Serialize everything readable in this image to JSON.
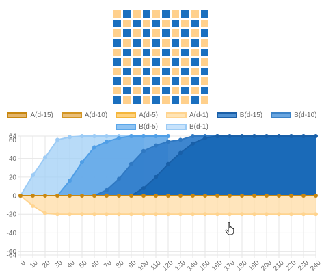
{
  "board": {
    "rows": 10,
    "cols": 10,
    "colors": {
      "light": "#ffd08c",
      "dark": "#1a6fbf",
      "pale": "#ffe7bf"
    },
    "pattern": [
      [
        "light",
        "dark",
        "light",
        "dark",
        "light",
        "dark",
        "light",
        "dark",
        "light",
        "dark"
      ],
      [
        "dark",
        "light",
        "dark",
        "light",
        "dark",
        "light",
        "dark",
        "light",
        "dark",
        "light"
      ],
      [
        "light",
        "dark",
        "light",
        "dark",
        "light",
        "dark",
        "light",
        "dark",
        "light",
        "dark"
      ],
      [
        "dark",
        "light",
        "dark",
        "light",
        "dark",
        "light",
        "dark",
        "light",
        "dark",
        "light"
      ],
      [
        "light",
        "dark",
        "light",
        "dark",
        "light",
        "dark",
        "light",
        "dark",
        "light",
        "dark"
      ],
      [
        "dark",
        "light",
        "dark",
        "light",
        "dark",
        "light",
        "dark",
        "light",
        "dark",
        "light"
      ],
      [
        "light",
        "dark",
        "light",
        "dark",
        "light",
        "dark",
        "light",
        "dark",
        "light",
        "dark"
      ],
      [
        "dark",
        "light",
        "dark",
        "light",
        "dark",
        "light",
        "dark",
        "light",
        "dark",
        "light"
      ],
      [
        "light",
        "dark",
        "light",
        "dark",
        "light",
        "dark",
        "light",
        "dark",
        "light",
        "dark"
      ],
      [
        "dark",
        "light",
        "dark",
        "light",
        "dark",
        "light",
        "dark",
        "light",
        "dark",
        "light"
      ]
    ]
  },
  "legend": {
    "row1": [
      {
        "label": "A(d-15)",
        "fill": "#e3b46a",
        "border": "#c8870f"
      },
      {
        "label": "A(d-10)",
        "fill": "#e9be79",
        "border": "#d39522"
      },
      {
        "label": "A(d-5)",
        "fill": "#ffd27f",
        "border": "#f4b63c"
      },
      {
        "label": "A(d-1)",
        "fill": "#ffe4b5",
        "border": "#ffd48f"
      },
      {
        "label": "B(d-15)",
        "fill": "#4d8fd1",
        "border": "#1a5fa8"
      },
      {
        "label": "B(d-10)",
        "fill": "#6aa6e0",
        "border": "#3b82c7"
      }
    ],
    "row2": [
      {
        "label": "B(d-5)",
        "fill": "#8fc3f2",
        "border": "#5aa7ea"
      },
      {
        "label": "B(d-1)",
        "fill": "#c7e2fb",
        "border": "#9ccbf5"
      }
    ]
  },
  "chart_data": {
    "type": "area",
    "y_range": [
      -64,
      64
    ],
    "y_ticks": [
      -64,
      -60,
      -40,
      -20,
      0,
      20,
      40,
      60,
      64
    ],
    "x_range": [
      0,
      240
    ],
    "x_ticks": [
      0,
      10,
      20,
      30,
      40,
      50,
      60,
      70,
      80,
      90,
      100,
      110,
      120,
      130,
      140,
      150,
      160,
      170,
      180,
      190,
      200,
      210,
      220,
      230,
      240
    ],
    "grid": true,
    "series": [
      {
        "name": "B(d-1)",
        "color": "#9ccbf5",
        "fill": "rgba(160,207,246,0.75)",
        "points": [
          [
            0,
            0
          ],
          [
            10,
            22
          ],
          [
            20,
            41
          ],
          [
            30,
            60
          ],
          [
            40,
            63
          ],
          [
            50,
            64
          ],
          [
            60,
            64
          ],
          [
            70,
            64
          ],
          [
            80,
            64
          ],
          [
            90,
            64
          ],
          [
            100,
            64
          ]
        ]
      },
      {
        "name": "B(d-5)",
        "color": "#4f9ee6",
        "fill": "rgba(100,168,232,0.9)",
        "points": [
          [
            0,
            0
          ],
          [
            30,
            0
          ],
          [
            40,
            16
          ],
          [
            50,
            36
          ],
          [
            60,
            52
          ],
          [
            70,
            58
          ],
          [
            80,
            62
          ],
          [
            90,
            64
          ],
          [
            100,
            64
          ],
          [
            110,
            64
          ],
          [
            120,
            64
          ]
        ]
      },
      {
        "name": "B(d-10)",
        "color": "#2f78c2",
        "fill": "rgba(52,128,204,0.95)",
        "points": [
          [
            0,
            0
          ],
          [
            60,
            0
          ],
          [
            70,
            6
          ],
          [
            80,
            18
          ],
          [
            90,
            34
          ],
          [
            100,
            48
          ],
          [
            110,
            54
          ],
          [
            120,
            58
          ],
          [
            130,
            60
          ],
          [
            140,
            64
          ],
          [
            150,
            64
          ],
          [
            160,
            64
          ]
        ]
      },
      {
        "name": "B(d-15)",
        "color": "#185fa8",
        "fill": "rgba(26,106,184,1)",
        "points": [
          [
            0,
            0
          ],
          [
            90,
            0
          ],
          [
            100,
            8
          ],
          [
            110,
            20
          ],
          [
            120,
            34
          ],
          [
            130,
            46
          ],
          [
            140,
            56
          ],
          [
            150,
            62
          ],
          [
            160,
            64
          ],
          [
            170,
            64
          ],
          [
            180,
            64
          ],
          [
            190,
            64
          ],
          [
            200,
            64
          ],
          [
            210,
            64
          ],
          [
            220,
            64
          ],
          [
            230,
            64
          ],
          [
            240,
            64
          ]
        ]
      },
      {
        "name": "A(d-1)",
        "color": "#ffd48f",
        "fill": "rgba(255,218,160,0.7)",
        "points": [
          [
            0,
            0
          ],
          [
            10,
            -11
          ],
          [
            20,
            -19
          ],
          [
            30,
            -20
          ],
          [
            40,
            -20
          ],
          [
            50,
            -20
          ],
          [
            60,
            -20
          ],
          [
            70,
            -20
          ],
          [
            80,
            -20
          ],
          [
            90,
            -20
          ],
          [
            100,
            -20
          ],
          [
            110,
            -20
          ],
          [
            120,
            -20
          ],
          [
            130,
            -20
          ],
          [
            140,
            -20
          ],
          [
            150,
            -20
          ],
          [
            160,
            -20
          ],
          [
            170,
            -20
          ],
          [
            180,
            -20
          ],
          [
            190,
            -20
          ],
          [
            200,
            -20
          ],
          [
            210,
            -20
          ],
          [
            220,
            -20
          ],
          [
            230,
            -20
          ],
          [
            240,
            -20
          ]
        ]
      },
      {
        "name": "A(d-15)",
        "color": "#c8870f",
        "fill": "none",
        "points": [
          [
            0,
            0
          ],
          [
            10,
            0
          ],
          [
            20,
            0
          ],
          [
            30,
            0
          ],
          [
            40,
            0
          ],
          [
            50,
            0
          ],
          [
            60,
            0
          ],
          [
            70,
            0
          ],
          [
            80,
            0
          ],
          [
            90,
            0
          ],
          [
            100,
            0
          ],
          [
            110,
            0
          ],
          [
            120,
            0
          ],
          [
            130,
            0
          ],
          [
            140,
            0
          ],
          [
            150,
            0
          ],
          [
            160,
            0
          ],
          [
            170,
            0
          ],
          [
            180,
            0
          ],
          [
            190,
            0
          ],
          [
            200,
            0
          ],
          [
            210,
            0
          ],
          [
            220,
            0
          ],
          [
            230,
            0
          ],
          [
            240,
            0
          ]
        ]
      }
    ]
  }
}
